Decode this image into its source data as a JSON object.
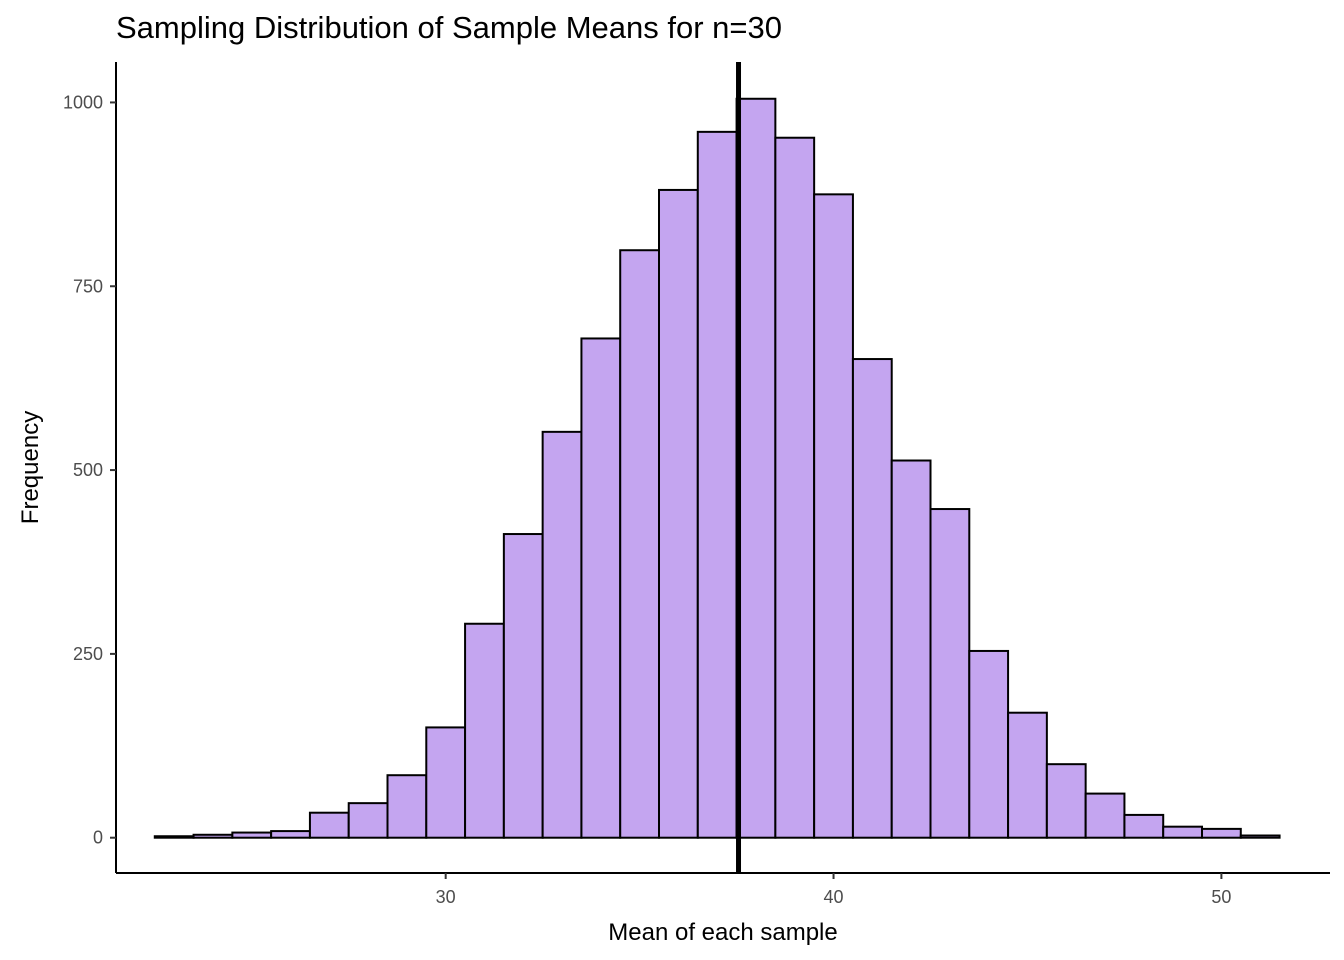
{
  "chart_data": {
    "type": "bar",
    "title": "Sampling Distribution of Sample Means for n=30",
    "xlabel": "Mean of each sample",
    "ylabel": "Frequency",
    "x_ticks": [
      30,
      40,
      50
    ],
    "y_ticks": [
      0,
      250,
      500,
      750,
      1000
    ],
    "xlim": [
      21.5,
      52.8
    ],
    "ylim": [
      -48,
      1055
    ],
    "bin_width": 1,
    "bins": [
      {
        "start": 22.5,
        "value": 2
      },
      {
        "start": 23.5,
        "value": 4
      },
      {
        "start": 24.5,
        "value": 7
      },
      {
        "start": 25.5,
        "value": 9
      },
      {
        "start": 26.5,
        "value": 34
      },
      {
        "start": 27.5,
        "value": 47
      },
      {
        "start": 28.5,
        "value": 85
      },
      {
        "start": 29.5,
        "value": 150
      },
      {
        "start": 30.5,
        "value": 291
      },
      {
        "start": 31.5,
        "value": 413
      },
      {
        "start": 32.5,
        "value": 552
      },
      {
        "start": 33.5,
        "value": 679
      },
      {
        "start": 34.5,
        "value": 799
      },
      {
        "start": 35.5,
        "value": 881
      },
      {
        "start": 36.5,
        "value": 960
      },
      {
        "start": 37.5,
        "value": 1005
      },
      {
        "start": 38.5,
        "value": 952
      },
      {
        "start": 39.5,
        "value": 875
      },
      {
        "start": 40.5,
        "value": 651
      },
      {
        "start": 41.5,
        "value": 513
      },
      {
        "start": 42.5,
        "value": 447
      },
      {
        "start": 43.5,
        "value": 254
      },
      {
        "start": 44.5,
        "value": 170
      },
      {
        "start": 45.5,
        "value": 100
      },
      {
        "start": 46.5,
        "value": 60
      },
      {
        "start": 47.5,
        "value": 31
      },
      {
        "start": 48.5,
        "value": 15
      },
      {
        "start": 49.5,
        "value": 12
      },
      {
        "start": 50.5,
        "value": 3
      }
    ],
    "mean_line": 37.55,
    "colors": {
      "bar_fill": "#c4a5f0",
      "bar_stroke": "#000000",
      "mean_line": "#000000"
    },
    "grid": false,
    "legend": "none"
  }
}
